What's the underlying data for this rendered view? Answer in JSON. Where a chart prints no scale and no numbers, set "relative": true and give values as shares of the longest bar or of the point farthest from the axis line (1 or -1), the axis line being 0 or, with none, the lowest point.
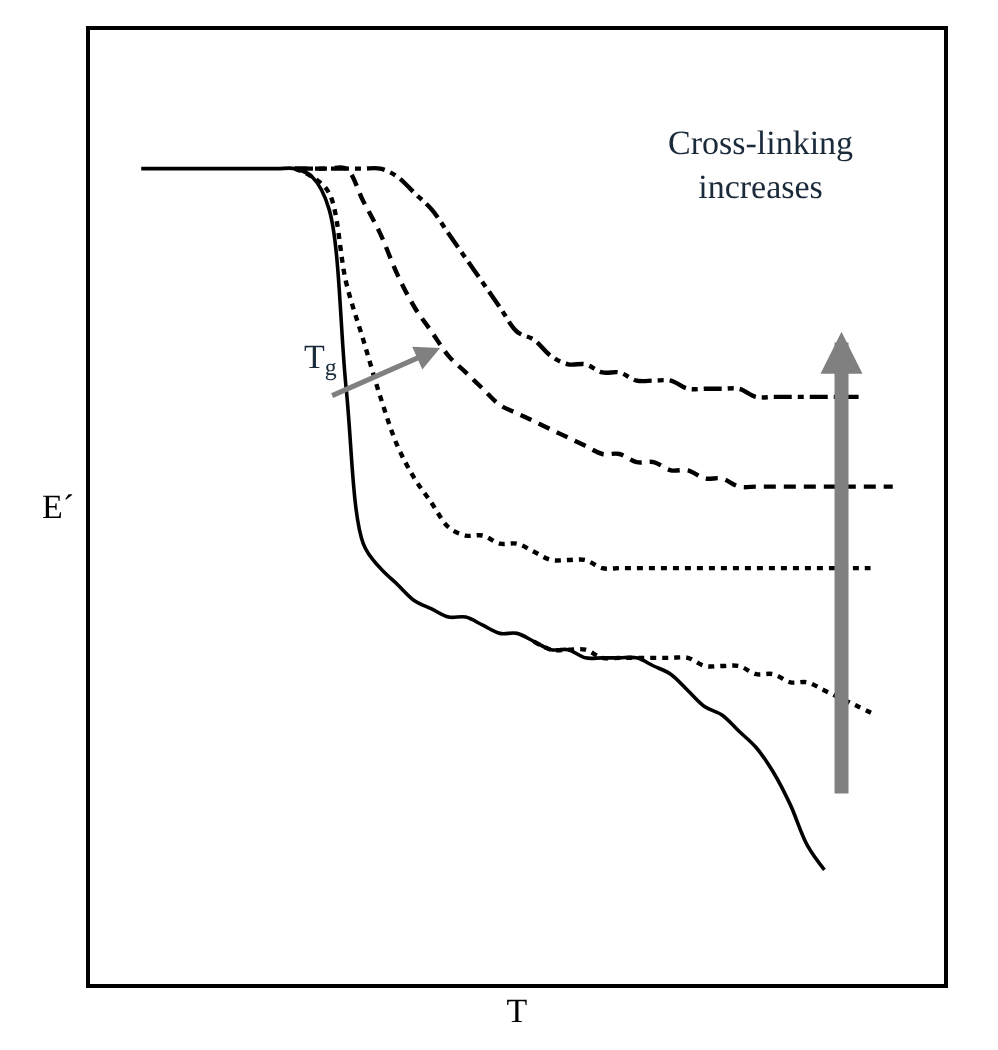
{
  "chart_data": {
    "type": "line",
    "relative": true,
    "xlabel": "T",
    "ylabel": "E´",
    "annotations": [
      "T$_{g}$",
      "Cross-linking\nincreases"
    ],
    "categories": [
      null,
      null,
      null,
      null,
      null,
      null,
      null,
      null,
      null,
      null,
      null,
      null,
      null,
      null,
      null,
      null,
      null,
      null,
      null,
      null,
      null,
      null,
      null,
      null,
      null,
      null,
      null,
      null,
      null,
      null,
      null,
      null,
      null,
      null,
      null,
      null,
      null,
      null,
      null,
      null,
      null,
      null,
      null,
      null,
      null
    ],
    "series": [
      {
        "color": "#000000",
        "line_style": "solid",
        "values": [
          1.0,
          1.0,
          1.0,
          1.0,
          1.0,
          1.0,
          1.0,
          1.0,
          1.0,
          1.0,
          0.99,
          0.95,
          0.73,
          0.54,
          0.51,
          0.49,
          0.47,
          0.46,
          0.45,
          0.45,
          0.44,
          0.43,
          0.43,
          0.42,
          0.41,
          0.41,
          0.4,
          0.4,
          0.4,
          0.4,
          0.39,
          0.38,
          0.36,
          0.34,
          0.33,
          0.31,
          0.29,
          0.26,
          0.22,
          0.17,
          0.14,
          null,
          null,
          null,
          null
        ]
      },
      {
        "color": "#000000",
        "line_style": "dotted",
        "values": [
          null,
          null,
          null,
          null,
          null,
          null,
          null,
          null,
          null,
          1.0,
          0.99,
          0.97,
          0.86,
          0.79,
          0.72,
          0.66,
          0.62,
          0.59,
          0.56,
          0.55,
          0.55,
          0.54,
          0.54,
          0.53,
          0.52,
          0.52,
          0.52,
          0.51,
          0.51,
          0.51,
          0.51,
          0.51,
          0.51,
          0.51,
          0.51,
          0.51,
          0.51,
          0.51,
          0.51,
          0.51,
          0.51,
          0.51,
          0.51,
          0.51,
          null
        ]
      },
      {
        "color": "#000000",
        "line_style": "dotted",
        "values": [
          null,
          null,
          null,
          null,
          null,
          null,
          null,
          null,
          null,
          null,
          null,
          null,
          null,
          null,
          null,
          null,
          null,
          null,
          null,
          null,
          null,
          null,
          null,
          0.42,
          0.41,
          0.41,
          0.41,
          0.4,
          0.4,
          0.4,
          0.4,
          0.4,
          0.4,
          0.39,
          0.39,
          0.39,
          0.38,
          0.38,
          0.37,
          0.37,
          0.36,
          0.35,
          0.34,
          0.33,
          null
        ]
      },
      {
        "color": "#000000",
        "line_style": "dashed",
        "values": [
          null,
          null,
          null,
          null,
          null,
          null,
          null,
          null,
          null,
          1.0,
          1.0,
          1.0,
          1.0,
          0.96,
          0.92,
          0.87,
          0.83,
          0.8,
          0.77,
          0.75,
          0.73,
          0.71,
          0.7,
          0.69,
          0.68,
          0.67,
          0.66,
          0.65,
          0.65,
          0.64,
          0.64,
          0.63,
          0.63,
          0.62,
          0.62,
          0.61,
          0.61,
          0.61,
          0.61,
          0.61,
          0.61,
          0.61,
          0.61,
          0.61,
          0.61
        ]
      },
      {
        "color": "#000000",
        "line_style": "dashdot",
        "values": [
          null,
          null,
          null,
          null,
          null,
          null,
          null,
          null,
          null,
          1.0,
          1.0,
          1.0,
          1.0,
          1.0,
          1.0,
          0.99,
          0.97,
          0.95,
          0.92,
          0.89,
          0.86,
          0.83,
          0.8,
          0.79,
          0.77,
          0.76,
          0.76,
          0.75,
          0.75,
          0.74,
          0.74,
          0.74,
          0.73,
          0.73,
          0.73,
          0.73,
          0.72,
          0.72,
          0.72,
          0.72,
          0.72,
          0.72,
          0.72,
          null,
          null
        ]
      }
    ]
  }
}
